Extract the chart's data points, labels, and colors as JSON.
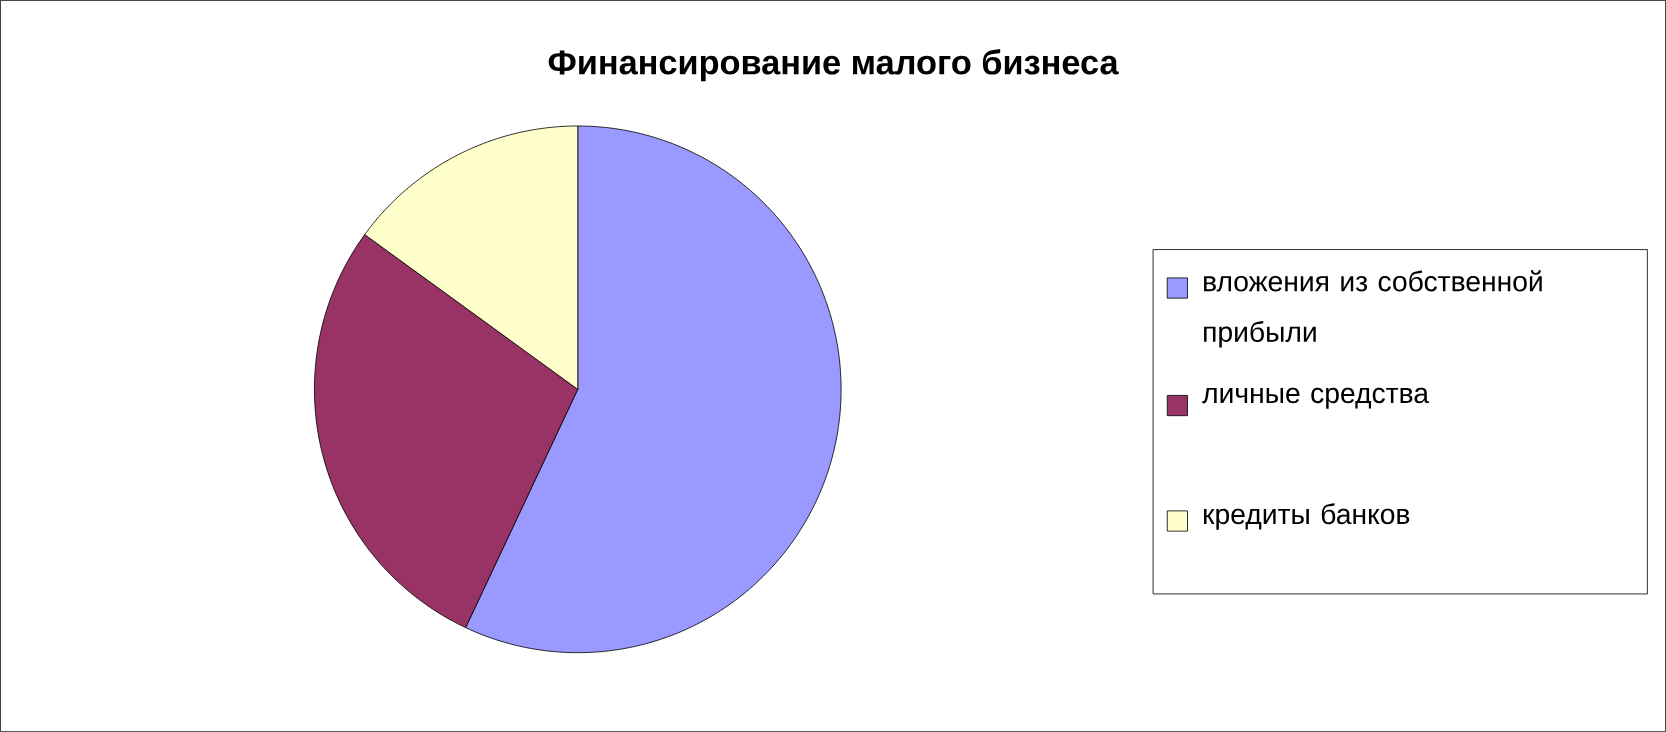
{
  "chart_data": {
    "type": "pie",
    "title": "Финансирование малого бизнеса",
    "categories": [
      "вложения из собственной прибыли",
      "личные средства",
      "кредиты банков"
    ],
    "values": [
      57,
      28,
      15
    ],
    "colors": [
      "#9999ff",
      "#993366",
      "#ffffcc"
    ],
    "legend": "right"
  }
}
